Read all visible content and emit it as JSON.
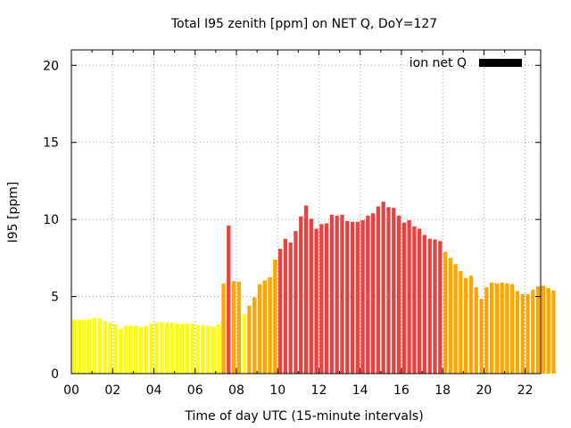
{
  "chart_data": {
    "type": "bar",
    "title": "Total I95 zenith [ppm] on NET Q, DoY=127",
    "xlabel": "Time of day UTC (15-minute intervals)",
    "ylabel": "I95 [ppm]",
    "xlim": [
      0,
      22.75
    ],
    "ylim": [
      0,
      21
    ],
    "grid": true,
    "legend": {
      "position": "top-right",
      "label": "ion net Q",
      "color": "#000000"
    },
    "x_ticks": [
      "00",
      "02",
      "04",
      "06",
      "08",
      "10",
      "12",
      "14",
      "16",
      "18",
      "20",
      "22"
    ],
    "y_ticks": [
      "0",
      "5",
      "10",
      "15",
      "20"
    ],
    "color_scale": {
      "low": "#ffff00",
      "medium": "#ffa500",
      "high": "#e8413f"
    },
    "bar_interval_hours": 0.25,
    "values": [
      3.5,
      3.5,
      3.5,
      3.55,
      3.6,
      3.6,
      3.4,
      3.3,
      3.2,
      2.9,
      3.1,
      3.1,
      3.1,
      3.0,
      3.1,
      3.25,
      3.3,
      3.35,
      3.3,
      3.3,
      3.25,
      3.25,
      3.25,
      3.25,
      3.15,
      3.15,
      3.1,
      3.05,
      3.2,
      5.85,
      9.6,
      6.0,
      5.95,
      3.85,
      4.4,
      4.95,
      5.8,
      6.05,
      6.25,
      7.4,
      8.1,
      8.75,
      8.5,
      9.25,
      10.2,
      10.9,
      10.05,
      9.4,
      9.7,
      9.75,
      10.3,
      10.25,
      10.3,
      9.9,
      9.85,
      9.85,
      9.95,
      10.25,
      10.4,
      10.85,
      11.15,
      10.8,
      10.75,
      10.25,
      9.8,
      9.95,
      9.55,
      9.4,
      9.0,
      8.75,
      8.7,
      8.6,
      7.9,
      7.5,
      7.1,
      6.65,
      6.2,
      6.35,
      5.6,
      4.85,
      5.6,
      5.9,
      5.85,
      5.9,
      5.85,
      5.8,
      5.35,
      5.15,
      5.15,
      5.45,
      5.65,
      5.7,
      5.55,
      5.4
    ],
    "levels": [
      "low",
      "low",
      "low",
      "low",
      "low",
      "low",
      "low",
      "low",
      "low",
      "low",
      "low",
      "low",
      "low",
      "low",
      "low",
      "low",
      "low",
      "low",
      "low",
      "low",
      "low",
      "low",
      "low",
      "low",
      "low",
      "low",
      "low",
      "low",
      "low",
      "medium",
      "high",
      "medium",
      "medium",
      "low",
      "medium",
      "medium",
      "medium",
      "medium",
      "medium",
      "medium",
      "high",
      "high",
      "high",
      "high",
      "high",
      "high",
      "high",
      "high",
      "high",
      "high",
      "high",
      "high",
      "high",
      "high",
      "high",
      "high",
      "high",
      "high",
      "high",
      "high",
      "high",
      "high",
      "high",
      "high",
      "high",
      "high",
      "high",
      "high",
      "high",
      "high",
      "high",
      "high",
      "medium",
      "medium",
      "medium",
      "medium",
      "medium",
      "medium",
      "medium",
      "medium",
      "medium",
      "medium",
      "medium",
      "medium",
      "medium",
      "medium",
      "medium",
      "medium",
      "medium",
      "medium",
      "medium",
      "medium",
      "medium",
      "medium"
    ]
  }
}
